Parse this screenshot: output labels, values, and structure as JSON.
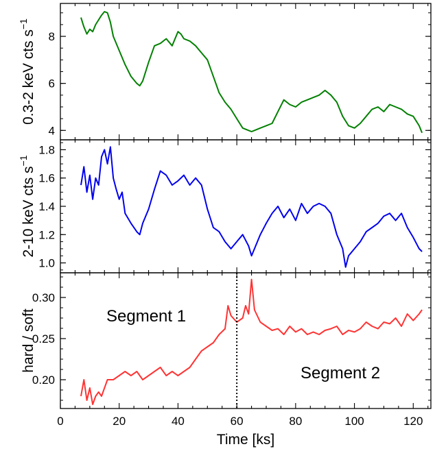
{
  "chart_data": {
    "type": "line",
    "x_label": "Time [ks]",
    "x_range": [
      0,
      126
    ],
    "x_ticks": [
      0,
      20,
      40,
      60,
      80,
      100,
      120
    ],
    "panels": [
      {
        "ylabel": "0.3-2 keV cts s",
        "ylabel_sup": "−1",
        "ylim": [
          3.6,
          9.4
        ],
        "y_ticks": [
          4,
          6,
          8
        ],
        "series": [
          {
            "color": "#008000",
            "x": [
              7,
              8,
              9,
              10,
              11,
              12,
              13,
              14,
              15,
              16,
              17,
              18,
              20,
              22,
              24,
              26,
              27,
              28,
              30,
              32,
              34,
              36,
              38,
              40,
              41,
              42,
              44,
              46,
              48,
              50,
              52,
              54,
              56,
              58,
              60,
              62,
              64,
              65,
              66,
              68,
              70,
              72,
              74,
              76,
              78,
              80,
              82,
              84,
              86,
              88,
              90,
              92,
              94,
              96,
              98,
              100,
              102,
              104,
              106,
              108,
              110,
              112,
              114,
              116,
              118,
              120,
              122,
              123
            ],
            "y": [
              8.8,
              8.4,
              8.1,
              8.3,
              8.2,
              8.5,
              8.7,
              8.9,
              9.05,
              9.0,
              8.6,
              8.0,
              7.4,
              6.8,
              6.3,
              6.0,
              5.9,
              6.1,
              6.9,
              7.6,
              7.7,
              7.9,
              7.6,
              8.2,
              8.1,
              7.9,
              7.8,
              7.6,
              7.3,
              7.0,
              6.3,
              5.6,
              5.2,
              4.9,
              4.5,
              4.1,
              4.0,
              3.95,
              4.0,
              4.1,
              4.2,
              4.3,
              4.8,
              5.3,
              5.1,
              5.0,
              5.2,
              5.3,
              5.4,
              5.5,
              5.7,
              5.5,
              5.2,
              4.6,
              4.2,
              4.1,
              4.3,
              4.6,
              4.9,
              5.0,
              4.8,
              5.1,
              5.0,
              4.9,
              4.7,
              4.6,
              4.2,
              3.9
            ]
          }
        ]
      },
      {
        "ylabel": "2-10 keV cts s",
        "ylabel_sup": "−1",
        "ylim": [
          0.93,
          1.87
        ],
        "y_ticks": [
          1.0,
          1.2,
          1.4,
          1.6,
          1.8
        ],
        "series": [
          {
            "color": "#0000ee",
            "x": [
              7,
              8,
              9,
              10,
              11,
              12,
              13,
              14,
              15,
              16,
              17,
              18,
              19,
              20,
              21,
              22,
              24,
              26,
              27,
              28,
              30,
              32,
              34,
              36,
              38,
              40,
              42,
              44,
              46,
              48,
              50,
              52,
              54,
              56,
              58,
              60,
              62,
              64,
              65,
              66,
              68,
              70,
              72,
              74,
              76,
              78,
              80,
              82,
              84,
              86,
              88,
              90,
              92,
              94,
              96,
              97,
              98,
              100,
              102,
              104,
              106,
              108,
              110,
              112,
              114,
              116,
              118,
              120,
              122,
              123
            ],
            "y": [
              1.55,
              1.68,
              1.5,
              1.62,
              1.45,
              1.6,
              1.55,
              1.75,
              1.8,
              1.7,
              1.82,
              1.6,
              1.52,
              1.45,
              1.5,
              1.35,
              1.28,
              1.22,
              1.2,
              1.28,
              1.38,
              1.52,
              1.65,
              1.62,
              1.55,
              1.58,
              1.62,
              1.55,
              1.6,
              1.55,
              1.38,
              1.25,
              1.22,
              1.15,
              1.1,
              1.15,
              1.2,
              1.12,
              1.05,
              1.1,
              1.2,
              1.28,
              1.35,
              1.4,
              1.32,
              1.38,
              1.3,
              1.42,
              1.35,
              1.4,
              1.42,
              1.4,
              1.35,
              1.2,
              1.1,
              0.97,
              1.05,
              1.1,
              1.15,
              1.22,
              1.25,
              1.28,
              1.33,
              1.35,
              1.3,
              1.35,
              1.25,
              1.18,
              1.1,
              1.08
            ]
          }
        ]
      },
      {
        "ylabel": "hard / soft",
        "ylim": [
          0.165,
          0.33
        ],
        "y_ticks": [
          0.2,
          0.25,
          0.3
        ],
        "series": [
          {
            "color": "#ff3333",
            "x": [
              7,
              8,
              9,
              10,
              11,
              12,
              13,
              14,
              15,
              16,
              18,
              20,
              22,
              24,
              26,
              28,
              30,
              32,
              34,
              36,
              38,
              40,
              42,
              44,
              46,
              48,
              50,
              52,
              54,
              56,
              57,
              58,
              60,
              62,
              63,
              64,
              65,
              66,
              68,
              70,
              72,
              74,
              76,
              78,
              80,
              82,
              84,
              86,
              88,
              90,
              92,
              94,
              96,
              98,
              100,
              102,
              104,
              106,
              108,
              110,
              112,
              114,
              116,
              118,
              120,
              122,
              123
            ],
            "y": [
              0.18,
              0.2,
              0.175,
              0.19,
              0.17,
              0.18,
              0.185,
              0.18,
              0.19,
              0.2,
              0.2,
              0.205,
              0.21,
              0.205,
              0.21,
              0.2,
              0.205,
              0.21,
              0.215,
              0.205,
              0.21,
              0.205,
              0.21,
              0.215,
              0.225,
              0.235,
              0.24,
              0.245,
              0.255,
              0.262,
              0.29,
              0.278,
              0.27,
              0.275,
              0.29,
              0.28,
              0.322,
              0.285,
              0.27,
              0.265,
              0.26,
              0.262,
              0.255,
              0.265,
              0.258,
              0.262,
              0.255,
              0.258,
              0.255,
              0.26,
              0.262,
              0.265,
              0.255,
              0.26,
              0.258,
              0.262,
              0.27,
              0.265,
              0.262,
              0.27,
              0.268,
              0.275,
              0.265,
              0.28,
              0.272,
              0.28,
              0.285
            ]
          }
        ],
        "annotations": [
          {
            "text": "Segment 1"
          },
          {
            "text": "Segment 2"
          }
        ],
        "vline_x": 60
      }
    ]
  }
}
